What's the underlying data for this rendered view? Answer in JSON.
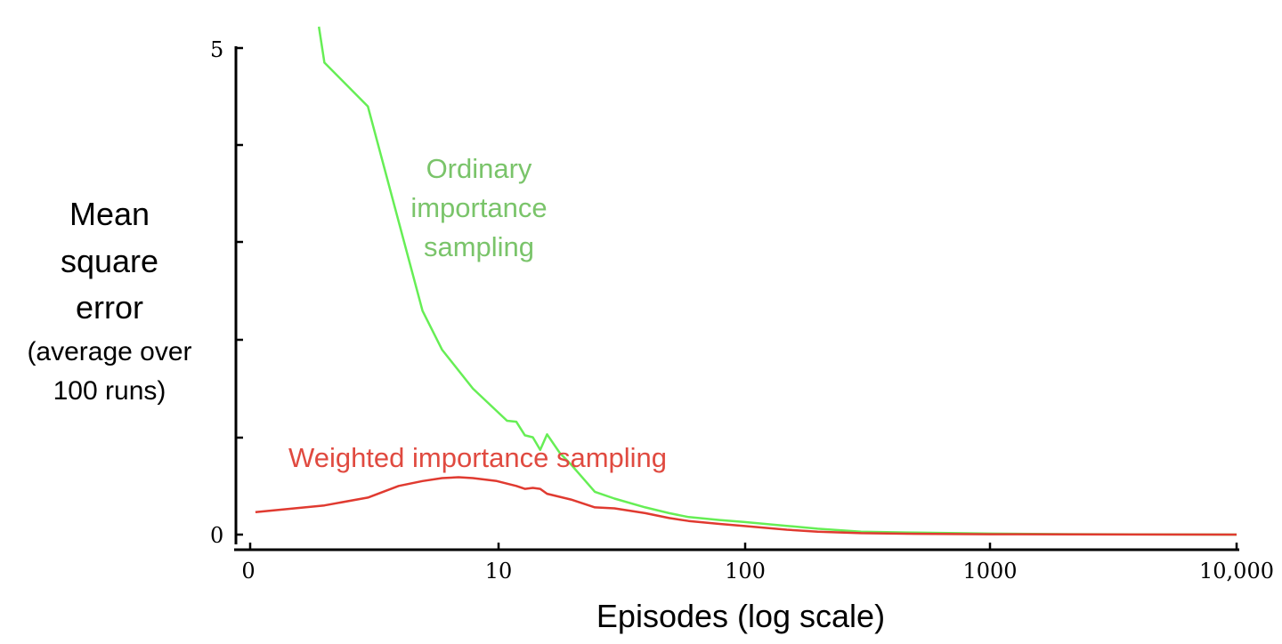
{
  "chart_data": {
    "type": "line",
    "xscale": "log",
    "xlabel": "Episodes (log scale)",
    "ylabel": [
      "Mean",
      "square",
      "error",
      "(average over",
      "100 runs)"
    ],
    "x_tick_labels": [
      "0",
      "10",
      "100",
      "1000",
      "10,000"
    ],
    "y_tick_labels": [
      "5",
      "0"
    ],
    "ylim": [
      0,
      5
    ],
    "xlim": [
      1,
      10000
    ],
    "series": [
      {
        "name": "Ordinary importance sampling",
        "label_lines": [
          "Ordinary",
          "importance",
          "sampling"
        ],
        "color": "#66ee55",
        "label_color": "#7ac46a",
        "points": [
          [
            1.9,
            5.3
          ],
          [
            2.0,
            4.85
          ],
          [
            3.0,
            4.4
          ],
          [
            5.0,
            2.3
          ],
          [
            6.0,
            1.9
          ],
          [
            8.0,
            1.5
          ],
          [
            11.0,
            1.17
          ],
          [
            12.0,
            1.16
          ],
          [
            13.0,
            1.02
          ],
          [
            14.0,
            1.0
          ],
          [
            15.0,
            0.87
          ],
          [
            16.0,
            1.03
          ],
          [
            18.0,
            0.84
          ],
          [
            20.0,
            0.72
          ],
          [
            25.0,
            0.44
          ],
          [
            30.0,
            0.37
          ],
          [
            40.0,
            0.28
          ],
          [
            50.0,
            0.22
          ],
          [
            60.0,
            0.18
          ],
          [
            80.0,
            0.15
          ],
          [
            100.0,
            0.13
          ],
          [
            150.0,
            0.09
          ],
          [
            200.0,
            0.06
          ],
          [
            300.0,
            0.03
          ],
          [
            500.0,
            0.02
          ],
          [
            1000.0,
            0.01
          ],
          [
            2000.0,
            0.005
          ],
          [
            10000.0,
            0.0
          ]
        ]
      },
      {
        "name": "Weighted importance sampling",
        "label_lines": [
          "Weighted importance sampling"
        ],
        "color": "#e03a30",
        "label_color": "#e04a40",
        "points": [
          [
            1.05,
            0.23
          ],
          [
            2.0,
            0.3
          ],
          [
            3.0,
            0.38
          ],
          [
            4.0,
            0.5
          ],
          [
            5.0,
            0.55
          ],
          [
            6.0,
            0.58
          ],
          [
            7.0,
            0.59
          ],
          [
            8.0,
            0.58
          ],
          [
            10.0,
            0.55
          ],
          [
            12.0,
            0.5
          ],
          [
            13.0,
            0.47
          ],
          [
            14.0,
            0.48
          ],
          [
            15.0,
            0.47
          ],
          [
            16.0,
            0.42
          ],
          [
            20.0,
            0.36
          ],
          [
            25.0,
            0.28
          ],
          [
            30.0,
            0.27
          ],
          [
            40.0,
            0.22
          ],
          [
            50.0,
            0.17
          ],
          [
            60.0,
            0.14
          ],
          [
            80.0,
            0.11
          ],
          [
            100.0,
            0.09
          ],
          [
            150.0,
            0.05
          ],
          [
            200.0,
            0.03
          ],
          [
            300.0,
            0.015
          ],
          [
            500.0,
            0.008
          ],
          [
            1000.0,
            0.004
          ],
          [
            10000.0,
            0.0
          ]
        ]
      }
    ]
  }
}
